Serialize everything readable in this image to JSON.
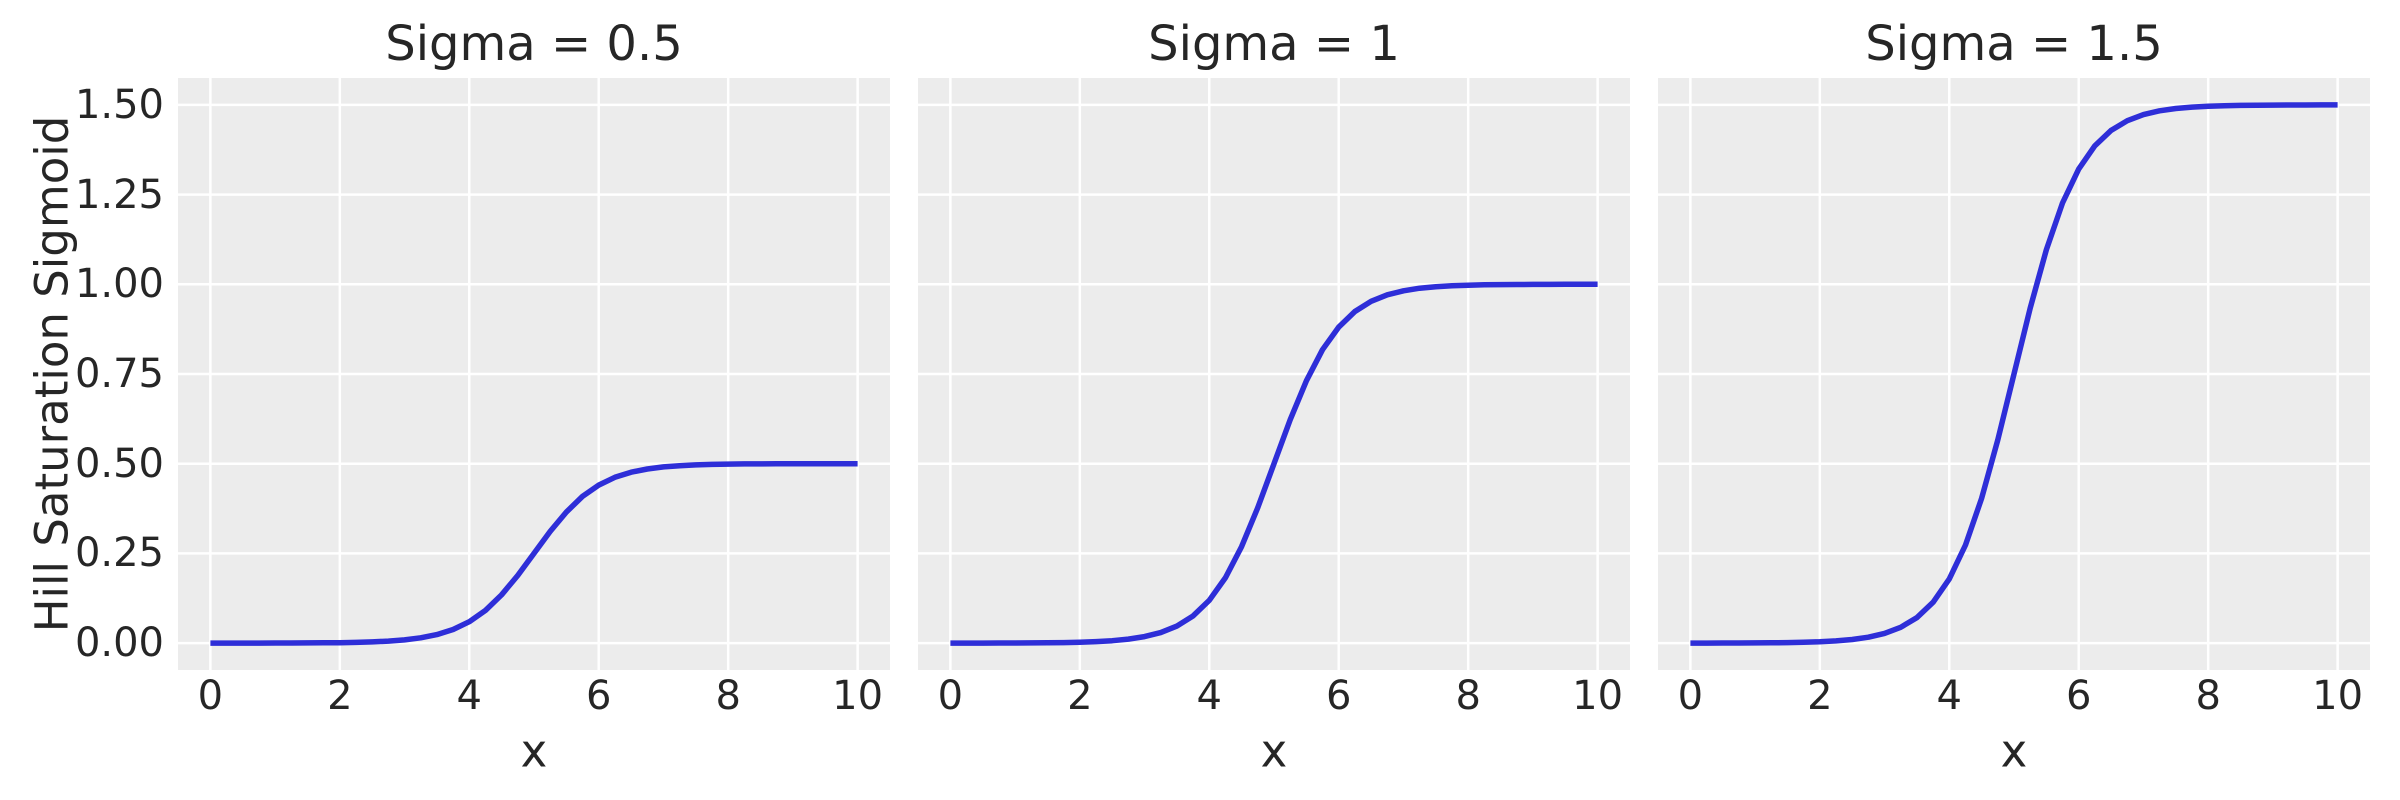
{
  "figure": {
    "background": "#FFFFFF",
    "axes_background": "#ECECEC",
    "grid_color": "#FFFFFF",
    "text_color": "#262626",
    "line_color": "#2E2ED8"
  },
  "chart_data": [
    {
      "type": "line",
      "title": "Sigma = 0.5",
      "xlabel": "x",
      "ylabel": "Hill Saturation Sigmoid",
      "legend": null,
      "grid": true,
      "xlim": [
        -0.5,
        10.5
      ],
      "ylim": [
        -0.075,
        1.575
      ],
      "xticks": [
        0,
        2,
        4,
        6,
        8,
        10
      ],
      "xtick_labels": [
        "0",
        "2",
        "4",
        "6",
        "8",
        "10"
      ],
      "yticks": [
        0,
        0.25,
        0.5,
        0.75,
        1,
        1.25,
        1.5
      ],
      "ytick_labels": [
        "0.00",
        "0.25",
        "0.50",
        "0.75",
        "1.00",
        "1.25",
        "1.50"
      ],
      "show_ytick_labels": true,
      "x": [
        0,
        0.25,
        0.5,
        0.75,
        1,
        1.25,
        1.5,
        1.75,
        2,
        2.25,
        2.5,
        2.75,
        3,
        3.25,
        3.5,
        3.75,
        4,
        4.25,
        4.5,
        4.75,
        5,
        5.25,
        5.5,
        5.75,
        6,
        6.25,
        6.5,
        6.75,
        7,
        7.25,
        7.5,
        7.75,
        8,
        8.25,
        8.5,
        8.75,
        9,
        9.25,
        9.5,
        9.75,
        10
      ],
      "y": [
        0,
        0,
        0.0001,
        0.0001,
        0.0002,
        0.0003,
        0.0005,
        0.0007,
        0.0012,
        0.002,
        0.0033,
        0.0055,
        0.009,
        0.0147,
        0.0237,
        0.0379,
        0.0596,
        0.0912,
        0.1345,
        0.1888,
        0.25,
        0.3112,
        0.3655,
        0.4088,
        0.4404,
        0.462,
        0.4763,
        0.4853,
        0.491,
        0.4945,
        0.4967,
        0.498,
        0.4988,
        0.4993,
        0.4995,
        0.4997,
        0.4998,
        0.4999,
        0.4999,
        0.5,
        0.5
      ]
    },
    {
      "type": "line",
      "title": "Sigma = 1",
      "xlabel": "x",
      "ylabel": "",
      "legend": null,
      "grid": true,
      "xlim": [
        -0.5,
        10.5
      ],
      "ylim": [
        -0.075,
        1.575
      ],
      "xticks": [
        0,
        2,
        4,
        6,
        8,
        10
      ],
      "xtick_labels": [
        "0",
        "2",
        "4",
        "6",
        "8",
        "10"
      ],
      "yticks": [
        0,
        0.25,
        0.5,
        0.75,
        1,
        1.25,
        1.5
      ],
      "ytick_labels": [
        "0.00",
        "0.25",
        "0.50",
        "0.75",
        "1.00",
        "1.25",
        "1.50"
      ],
      "show_ytick_labels": false,
      "x": [
        0,
        0.25,
        0.5,
        0.75,
        1,
        1.25,
        1.5,
        1.75,
        2,
        2.25,
        2.5,
        2.75,
        3,
        3.25,
        3.5,
        3.75,
        4,
        4.25,
        4.5,
        4.75,
        5,
        5.25,
        5.5,
        5.75,
        6,
        6.25,
        6.5,
        6.75,
        7,
        7.25,
        7.5,
        7.75,
        8,
        8.25,
        8.5,
        8.75,
        9,
        9.25,
        9.5,
        9.75,
        10
      ],
      "y": [
        0,
        0.0001,
        0.0001,
        0.0002,
        0.0003,
        0.0006,
        0.0009,
        0.0015,
        0.0025,
        0.0041,
        0.0067,
        0.011,
        0.018,
        0.0293,
        0.0474,
        0.0759,
        0.1192,
        0.1824,
        0.2689,
        0.3775,
        0.5,
        0.6225,
        0.7311,
        0.8176,
        0.8808,
        0.9241,
        0.9526,
        0.9707,
        0.982,
        0.989,
        0.9933,
        0.9959,
        0.9975,
        0.9985,
        0.9991,
        0.9994,
        0.9997,
        0.9998,
        0.9999,
        0.9999,
        1
      ]
    },
    {
      "type": "line",
      "title": "Sigma = 1.5",
      "xlabel": "x",
      "ylabel": "",
      "legend": null,
      "grid": true,
      "xlim": [
        -0.5,
        10.5
      ],
      "ylim": [
        -0.075,
        1.575
      ],
      "xticks": [
        0,
        2,
        4,
        6,
        8,
        10
      ],
      "xtick_labels": [
        "0",
        "2",
        "4",
        "6",
        "8",
        "10"
      ],
      "yticks": [
        0,
        0.25,
        0.5,
        0.75,
        1,
        1.25,
        1.5
      ],
      "ytick_labels": [
        "0.00",
        "0.25",
        "0.50",
        "0.75",
        "1.00",
        "1.25",
        "1.50"
      ],
      "show_ytick_labels": false,
      "x": [
        0,
        0.25,
        0.5,
        0.75,
        1,
        1.25,
        1.5,
        1.75,
        2,
        2.25,
        2.5,
        2.75,
        3,
        3.25,
        3.5,
        3.75,
        4,
        4.25,
        4.5,
        4.75,
        5,
        5.25,
        5.5,
        5.75,
        6,
        6.25,
        6.5,
        6.75,
        7,
        7.25,
        7.5,
        7.75,
        8,
        8.25,
        8.5,
        8.75,
        9,
        9.25,
        9.5,
        9.75,
        10
      ],
      "y": [
        0.0001,
        0.0001,
        0.0002,
        0.0003,
        0.0005,
        0.0008,
        0.0014,
        0.0022,
        0.0037,
        0.0061,
        0.01,
        0.0165,
        0.027,
        0.044,
        0.0711,
        0.1138,
        0.1788,
        0.2735,
        0.4034,
        0.5663,
        0.75,
        0.9337,
        1.0966,
        1.2265,
        1.3212,
        1.3862,
        1.4289,
        1.456,
        1.473,
        1.4835,
        1.4899,
        1.4938,
        1.4962,
        1.4977,
        1.4986,
        1.4991,
        1.4995,
        1.4997,
        1.4998,
        1.4999,
        1.4999
      ]
    }
  ]
}
